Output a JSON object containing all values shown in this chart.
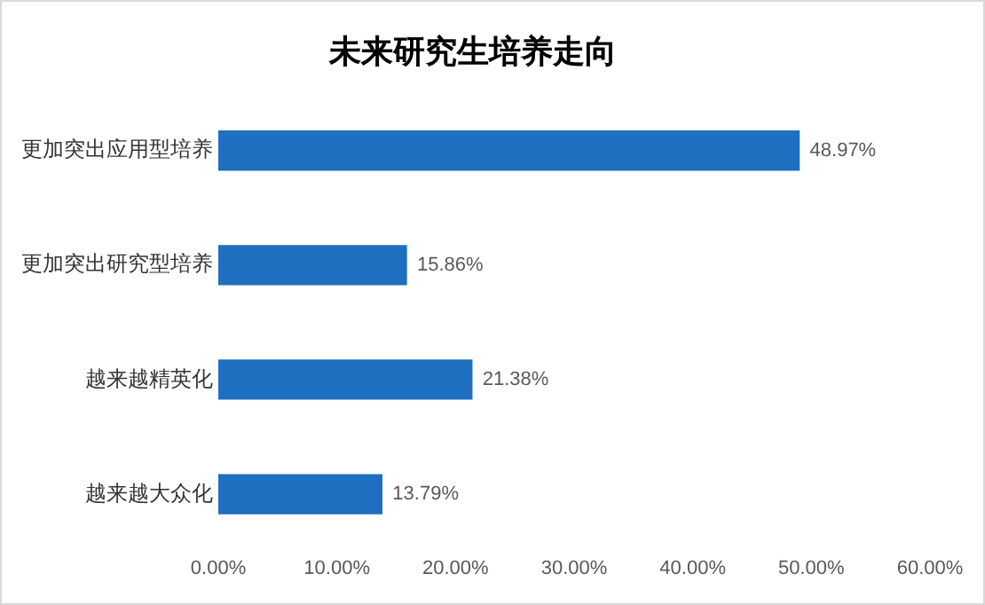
{
  "chart_data": {
    "type": "bar",
    "orientation": "horizontal",
    "title": "未来研究生培养走向",
    "categories": [
      "更加突出应用型培养",
      "更加突出研究型培养",
      "越来越精英化",
      "越来越大众化"
    ],
    "values": [
      48.97,
      15.86,
      21.38,
      13.79
    ],
    "value_labels": [
      "48.97%",
      "15.86%",
      "21.38%",
      "13.79%"
    ],
    "color": "#1f6fc1",
    "xlim": [
      0,
      60
    ],
    "xticks": [
      {
        "value": 0,
        "label": "0.00%"
      },
      {
        "value": 10,
        "label": "10.00%"
      },
      {
        "value": 20,
        "label": "20.00%"
      },
      {
        "value": 30,
        "label": "30.00%"
      },
      {
        "value": 40,
        "label": "40.00%"
      },
      {
        "value": 50,
        "label": "50.00%"
      },
      {
        "value": 60,
        "label": "60.00%"
      }
    ],
    "grid": false,
    "legend": false
  }
}
